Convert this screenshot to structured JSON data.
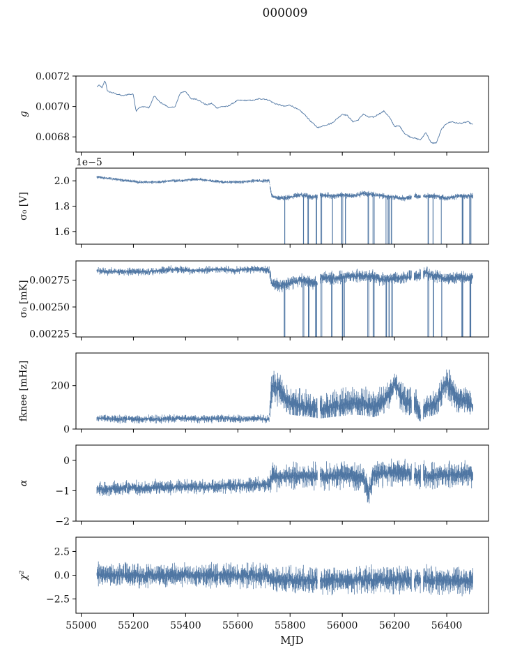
{
  "figure": {
    "title": "000009",
    "xlabel": "MJD"
  },
  "colors": {
    "series": "#4f76a3",
    "axis": "#000000"
  },
  "chart_data": [
    {
      "type": "line",
      "id": "g",
      "ylabel": "g",
      "xlim": [
        54980,
        56560
      ],
      "ylim": [
        0.0067,
        0.0072
      ],
      "yticks": [
        {
          "value": 0.0068,
          "label": "0.0068"
        },
        {
          "value": 0.007,
          "label": "0.0070"
        },
        {
          "value": 0.0072,
          "label": "0.0072"
        }
      ],
      "series": [
        {
          "name": "g",
          "x": [
            55060,
            55070,
            55080,
            55090,
            55095,
            55100,
            55120,
            55140,
            55160,
            55180,
            55200,
            55210,
            55220,
            55240,
            55260,
            55280,
            55300,
            55320,
            55340,
            55360,
            55380,
            55400,
            55420,
            55440,
            55460,
            55480,
            55500,
            55520,
            55540,
            55560,
            55580,
            55600,
            55620,
            55640,
            55660,
            55680,
            55700,
            55720,
            55740,
            55760,
            55780,
            55800,
            55820,
            55840,
            55860,
            55880,
            55900,
            55910,
            55920,
            55940,
            55960,
            55980,
            56000,
            56020,
            56040,
            56060,
            56080,
            56100,
            56120,
            56140,
            56160,
            56180,
            56200,
            56220,
            56240,
            56260,
            56280,
            56300,
            56320,
            56340,
            56360,
            56380,
            56400,
            56420,
            56440,
            56460,
            56480,
            56500
          ],
          "y": [
            0.00713,
            0.00714,
            0.00712,
            0.00717,
            0.00715,
            0.0071,
            0.00709,
            0.00708,
            0.00707,
            0.00708,
            0.00708,
            0.00697,
            0.00699,
            0.007,
            0.00699,
            0.00707,
            0.00703,
            0.00701,
            0.00699,
            0.007,
            0.00709,
            0.0071,
            0.00705,
            0.00705,
            0.00703,
            0.00701,
            0.00702,
            0.00699,
            0.007,
            0.007,
            0.00702,
            0.00704,
            0.00704,
            0.00704,
            0.00704,
            0.00705,
            0.00705,
            0.00704,
            0.00702,
            0.00701,
            0.007,
            0.00701,
            0.00699,
            0.00697,
            0.00694,
            0.0069,
            0.00687,
            0.00686,
            0.00687,
            0.00688,
            0.00689,
            0.00692,
            0.00695,
            0.00694,
            0.0069,
            0.00691,
            0.00695,
            0.00693,
            0.00693,
            0.00695,
            0.00697,
            0.00693,
            0.00687,
            0.00687,
            0.00682,
            0.0068,
            0.00679,
            0.00678,
            0.00683,
            0.00676,
            0.00676,
            0.00685,
            0.00689,
            0.0069,
            0.00689,
            0.00689,
            0.0069,
            0.00688
          ]
        }
      ]
    },
    {
      "type": "line",
      "id": "sigma0_V",
      "ylabel": "σ₀ [V]",
      "offset_label": "1e−5",
      "xlim": [
        54980,
        56560
      ],
      "ylim": [
        1.5,
        2.1
      ],
      "yticks": [
        {
          "value": 1.6,
          "label": "1.6"
        },
        {
          "value": 1.8,
          "label": "1.8"
        },
        {
          "value": 2.0,
          "label": "2.0"
        }
      ],
      "series": [
        {
          "name": "sigma0_V",
          "x": [
            55060,
            55100,
            55140,
            55180,
            55220,
            55260,
            55300,
            55340,
            55380,
            55420,
            55460,
            55500,
            55540,
            55580,
            55620,
            55660,
            55700,
            55720,
            55730,
            55760,
            55800,
            55840,
            55880,
            55910,
            55920,
            55960,
            56000,
            56040,
            56080,
            56120,
            56160,
            56200,
            56240,
            56280,
            56300,
            56320,
            56360,
            56400,
            56440,
            56480,
            56500
          ],
          "y": [
            2.03,
            2.02,
            2.01,
            2.0,
            1.99,
            1.99,
            1.99,
            2.0,
            2.0,
            2.01,
            2.01,
            2.0,
            1.99,
            1.99,
            1.99,
            2.0,
            2.0,
            2.0,
            1.88,
            1.86,
            1.87,
            1.89,
            1.87,
            1.88,
            1.89,
            1.88,
            1.89,
            1.88,
            1.9,
            1.89,
            1.88,
            1.87,
            1.86,
            1.88,
            1.87,
            1.88,
            1.88,
            1.86,
            1.88,
            1.88,
            1.88
          ]
        }
      ],
      "dips": [
        55780,
        55850,
        55870,
        55900,
        55920,
        55960,
        56000,
        56010,
        56100,
        56120,
        56170,
        56180,
        56190,
        56330,
        56350,
        56380,
        56460,
        56490
      ]
    },
    {
      "type": "line",
      "id": "sigma0_mK",
      "ylabel": "σ₀ [mK]",
      "xlim": [
        54980,
        56560
      ],
      "ylim": [
        0.00222,
        0.00293
      ],
      "yticks": [
        {
          "value": 0.00225,
          "label": "0.00225"
        },
        {
          "value": 0.0025,
          "label": "0.00250"
        },
        {
          "value": 0.00275,
          "label": "0.00275"
        }
      ],
      "series": [
        {
          "name": "sigma0_mK",
          "x": [
            55060,
            55100,
            55140,
            55180,
            55220,
            55260,
            55300,
            55340,
            55380,
            55420,
            55460,
            55500,
            55540,
            55580,
            55620,
            55660,
            55700,
            55720,
            55730,
            55760,
            55800,
            55840,
            55880,
            55910,
            55920,
            55960,
            56000,
            56040,
            56080,
            56120,
            56160,
            56200,
            56240,
            56280,
            56300,
            56320,
            56360,
            56400,
            56440,
            56480,
            56500
          ],
          "y": [
            0.00284,
            0.00283,
            0.00283,
            0.00283,
            0.00283,
            0.00283,
            0.00284,
            0.00285,
            0.00285,
            0.00284,
            0.00284,
            0.00285,
            0.00285,
            0.00284,
            0.00285,
            0.00285,
            0.00285,
            0.00285,
            0.00272,
            0.0027,
            0.00272,
            0.00275,
            0.00273,
            0.00272,
            0.00278,
            0.00277,
            0.00278,
            0.00279,
            0.00279,
            0.00278,
            0.00275,
            0.00277,
            0.00277,
            0.00279,
            0.0028,
            0.00282,
            0.00279,
            0.00276,
            0.00278,
            0.00277,
            0.00278
          ]
        }
      ],
      "dips": [
        55780,
        55850,
        55870,
        55900,
        55920,
        55960,
        56000,
        56010,
        56100,
        56120,
        56170,
        56180,
        56190,
        56330,
        56350,
        56380,
        56460,
        56490
      ]
    },
    {
      "type": "line",
      "id": "fknee",
      "ylabel": "fknee [mHz]",
      "xlim": [
        54980,
        56560
      ],
      "ylim": [
        0,
        350
      ],
      "yticks": [
        {
          "value": 0,
          "label": "0"
        },
        {
          "value": 200,
          "label": "200"
        }
      ],
      "series": [
        {
          "name": "fknee",
          "x": [
            55060,
            55100,
            55140,
            55180,
            55220,
            55260,
            55300,
            55340,
            55380,
            55420,
            55460,
            55500,
            55540,
            55580,
            55620,
            55660,
            55700,
            55720,
            55730,
            55750,
            55780,
            55800,
            55840,
            55880,
            55910,
            55920,
            55960,
            56000,
            56040,
            56080,
            56120,
            56160,
            56200,
            56240,
            56280,
            56300,
            56320,
            56360,
            56400,
            56440,
            56480,
            56500
          ],
          "y": [
            50,
            48,
            45,
            47,
            44,
            46,
            45,
            47,
            50,
            48,
            46,
            47,
            49,
            45,
            46,
            48,
            47,
            45,
            200,
            190,
            150,
            120,
            110,
            100,
            90,
            90,
            100,
            110,
            120,
            115,
            100,
            130,
            210,
            120,
            110,
            60,
            100,
            120,
            220,
            140,
            130,
            110
          ]
        }
      ]
    },
    {
      "type": "line",
      "id": "alpha",
      "ylabel": "α",
      "xlim": [
        54980,
        56560
      ],
      "ylim": [
        -2.0,
        0.5
      ],
      "yticks": [
        {
          "value": -2,
          "label": "−2"
        },
        {
          "value": -1,
          "label": "−1"
        },
        {
          "value": 0,
          "label": "0"
        }
      ],
      "series": [
        {
          "name": "alpha",
          "x": [
            55060,
            55100,
            55140,
            55180,
            55220,
            55260,
            55300,
            55340,
            55380,
            55420,
            55460,
            55500,
            55540,
            55580,
            55620,
            55660,
            55700,
            55720,
            55730,
            55760,
            55800,
            55840,
            55880,
            55910,
            55920,
            55960,
            56000,
            56040,
            56080,
            56100,
            56120,
            56160,
            56200,
            56240,
            56280,
            56300,
            56320,
            56360,
            56400,
            56440,
            56480,
            56500
          ],
          "y": [
            -0.95,
            -0.95,
            -0.92,
            -0.9,
            -0.92,
            -0.9,
            -0.88,
            -0.9,
            -0.86,
            -0.85,
            -0.88,
            -0.86,
            -0.84,
            -0.82,
            -0.83,
            -0.8,
            -0.8,
            -0.78,
            -0.5,
            -0.55,
            -0.52,
            -0.5,
            -0.55,
            -0.52,
            -0.5,
            -0.52,
            -0.48,
            -0.5,
            -0.55,
            -1.1,
            -0.45,
            -0.45,
            -0.4,
            -0.4,
            -0.48,
            -0.5,
            -0.48,
            -0.5,
            -0.47,
            -0.48,
            -0.48,
            -0.45
          ]
        }
      ]
    },
    {
      "type": "line",
      "id": "chi2",
      "ylabel": "χ²",
      "xlim": [
        54980,
        56560
      ],
      "ylim": [
        -4.0,
        4.0
      ],
      "yticks": [
        {
          "value": -2.5,
          "label": "−2.5"
        },
        {
          "value": 0.0,
          "label": "0.0"
        },
        {
          "value": 2.5,
          "label": "2.5"
        }
      ],
      "series": [
        {
          "name": "chi2",
          "x": [
            55060,
            55200,
            55400,
            55600,
            55720,
            55730,
            55900,
            56100,
            56300,
            56500
          ],
          "y": [
            0.0,
            0.0,
            0.0,
            0.0,
            0.0,
            -0.5,
            -0.5,
            -0.5,
            -0.5,
            -0.6
          ]
        }
      ]
    }
  ],
  "xaxis": {
    "ticks": [
      {
        "value": 55000,
        "label": "55000"
      },
      {
        "value": 55200,
        "label": "55200"
      },
      {
        "value": 55400,
        "label": "55400"
      },
      {
        "value": 55600,
        "label": "55600"
      },
      {
        "value": 55800,
        "label": "55800"
      },
      {
        "value": 56000,
        "label": "56000"
      },
      {
        "value": 56200,
        "label": "56200"
      },
      {
        "value": 56400,
        "label": "56400"
      }
    ]
  }
}
